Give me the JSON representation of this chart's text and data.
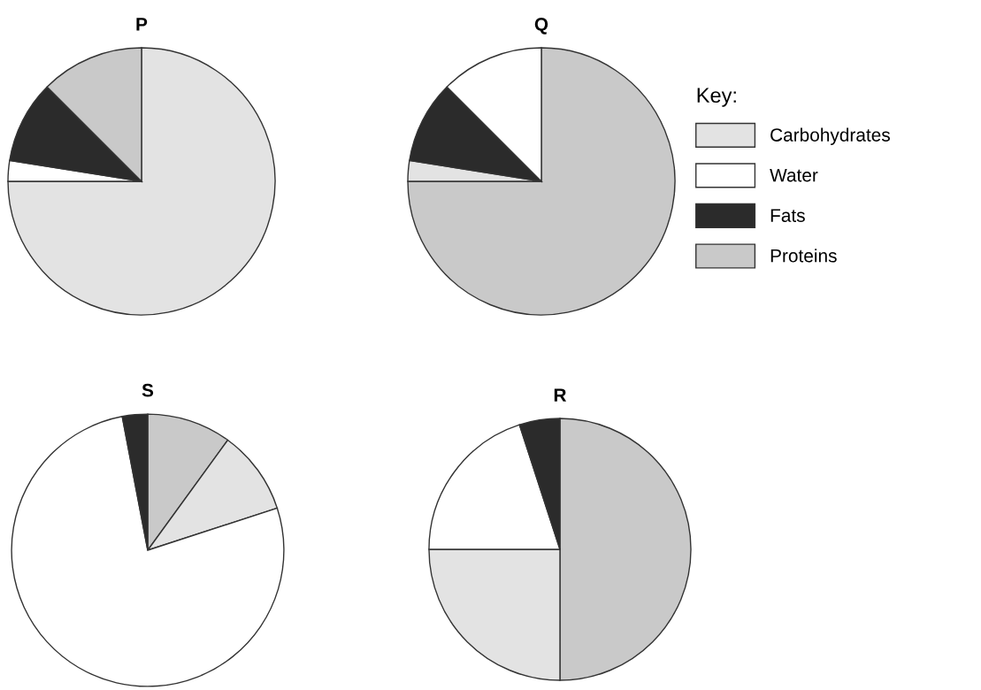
{
  "chart_data": [
    {
      "type": "pie",
      "title": "P",
      "categories": [
        "Carbohydrates",
        "Water",
        "Fats",
        "Proteins"
      ],
      "values": [
        75,
        2.5,
        10,
        12.5
      ],
      "colors": [
        "#e3e3e3",
        "#ffffff",
        "#2b2b2b",
        "#c9c9c9"
      ],
      "legend": "right",
      "legend_title": "Key:"
    },
    {
      "type": "pie",
      "title": "Q",
      "categories": [
        null,
        null,
        null,
        null
      ],
      "values": [
        75,
        2.5,
        10,
        12.5
      ],
      "colors": [
        "#c9c9c9",
        "#e3e3e3",
        "#2b2b2b",
        "#ffffff"
      ]
    },
    {
      "type": "pie",
      "title": "S",
      "categories": [
        null,
        null,
        null,
        null
      ],
      "values": [
        10,
        10,
        77,
        3
      ],
      "colors": [
        "#c9c9c9",
        "#e3e3e3",
        "#ffffff",
        "#2b2b2b"
      ]
    },
    {
      "type": "pie",
      "title": "R",
      "categories": [
        null,
        null,
        null,
        null
      ],
      "values": [
        50,
        25,
        20,
        5
      ],
      "colors": [
        "#c9c9c9",
        "#e3e3e3",
        "#ffffff",
        "#2b2b2b"
      ]
    }
  ]
}
